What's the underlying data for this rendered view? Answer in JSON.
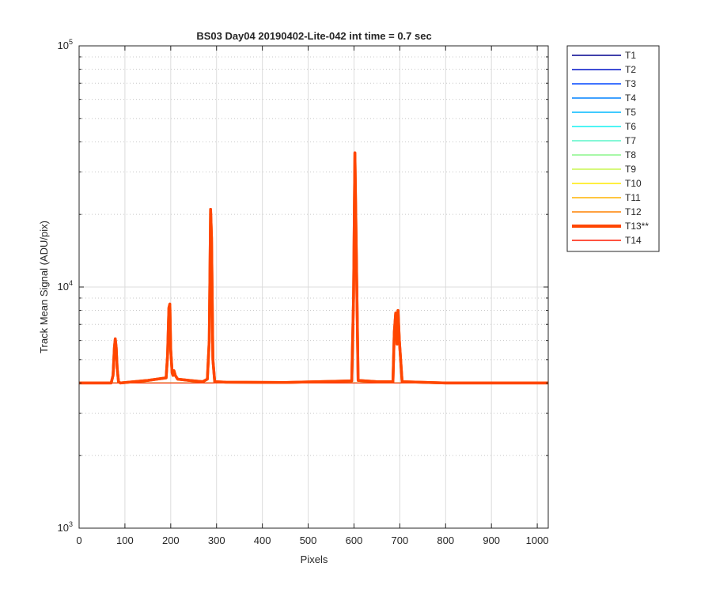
{
  "chart_data": {
    "type": "line",
    "title": "BS03 Day04 20190402-Lite-042 int time = 0.7 sec",
    "xlabel": "Pixels",
    "ylabel": "Track Mean Signal (ADU/pix)",
    "xlim": [
      0,
      1024
    ],
    "ylim": [
      1000,
      100000
    ],
    "yscale": "log",
    "x_ticks": [
      0,
      100,
      200,
      300,
      400,
      500,
      600,
      700,
      800,
      900,
      1000
    ],
    "x_tick_labels": [
      "0",
      "100",
      "200",
      "300",
      "400",
      "500",
      "600",
      "700",
      "800",
      "900",
      "1000"
    ],
    "y_major_ticks": [
      {
        "value": 1000,
        "base": "10",
        "exp": "3"
      },
      {
        "value": 10000,
        "base": "10",
        "exp": "4"
      },
      {
        "value": 100000,
        "base": "10",
        "exp": "5"
      }
    ],
    "grid": true,
    "legend_position": "outside-right",
    "baseline": 4000,
    "series": [
      {
        "name": "T1",
        "color": "#00008f",
        "highlight": false
      },
      {
        "name": "T2",
        "color": "#0014c8",
        "highlight": false
      },
      {
        "name": "T3",
        "color": "#0046ff",
        "highlight": false
      },
      {
        "name": "T4",
        "color": "#0082ff",
        "highlight": false
      },
      {
        "name": "T5",
        "color": "#00b8ff",
        "highlight": false
      },
      {
        "name": "T6",
        "color": "#14f0f0",
        "highlight": false
      },
      {
        "name": "T7",
        "color": "#5cf5c8",
        "highlight": false
      },
      {
        "name": "T8",
        "color": "#8cf58c",
        "highlight": false
      },
      {
        "name": "T9",
        "color": "#c8f550",
        "highlight": false
      },
      {
        "name": "T10",
        "color": "#ffea00",
        "highlight": false
      },
      {
        "name": "T11",
        "color": "#ffb400",
        "highlight": false
      },
      {
        "name": "T12",
        "color": "#ff8200",
        "highlight": false
      },
      {
        "name": "T13**",
        "color": "#ff4600",
        "highlight": true,
        "x": [
          0,
          70,
          74,
          77,
          79,
          81,
          83,
          86,
          90,
          120,
          150,
          190,
          193,
          196,
          198,
          200,
          203,
          205,
          207,
          210,
          215,
          240,
          270,
          280,
          284,
          287,
          289,
          292,
          296,
          320,
          450,
          595,
          599,
          602,
          605,
          609,
          650,
          685,
          688,
          691,
          694,
          696,
          699,
          705,
          800,
          1024
        ],
        "values": [
          4000,
          4000,
          4300,
          5600,
          6100,
          5600,
          4600,
          4050,
          4000,
          4050,
          4100,
          4200,
          5200,
          8200,
          8500,
          5500,
          4400,
          4300,
          4500,
          4300,
          4150,
          4100,
          4050,
          4150,
          6000,
          21000,
          16000,
          5000,
          4050,
          4030,
          4020,
          4080,
          9000,
          36000,
          14000,
          4100,
          4050,
          4050,
          6500,
          7800,
          5800,
          8000,
          6000,
          4050,
          4000,
          4000
        ]
      },
      {
        "name": "T14",
        "color": "#ff1a00",
        "highlight": false
      }
    ]
  }
}
